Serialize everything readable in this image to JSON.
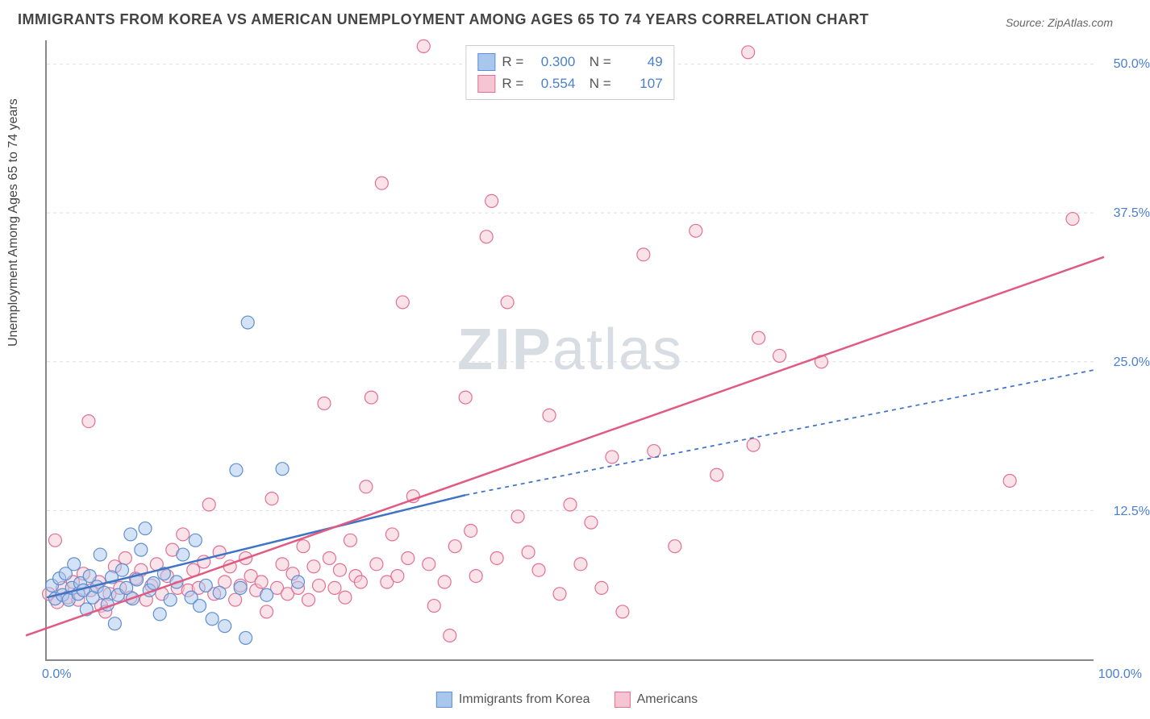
{
  "title": "IMMIGRANTS FROM KOREA VS AMERICAN UNEMPLOYMENT AMONG AGES 65 TO 74 YEARS CORRELATION CHART",
  "source": "Source: ZipAtlas.com",
  "watermark_1": "ZIP",
  "watermark_2": "atlas",
  "y_axis_label": "Unemployment Among Ages 65 to 74 years",
  "chart": {
    "type": "scatter",
    "xlim": [
      0,
      100
    ],
    "ylim": [
      0,
      52
    ],
    "y_ticks": [
      12.5,
      25.0,
      37.5,
      50.0
    ],
    "y_tick_labels": [
      "12.5%",
      "25.0%",
      "37.5%",
      "50.0%"
    ],
    "x_tick_labels": {
      "min": "0.0%",
      "max": "100.0%"
    },
    "background_color": "#ffffff",
    "grid_color": "#dddddd",
    "axis_color": "#888888",
    "label_color": "#4a7fd0",
    "marker_radius": 8,
    "marker_opacity": 0.5,
    "series": [
      {
        "name": "Immigrants from Korea",
        "fill": "#a9c6ec",
        "stroke": "#5d8fd2",
        "line_color": "#3f73c4",
        "line_width": 2.5,
        "line_dash_extension": "5,5",
        "R": "0.300",
        "N": "49",
        "trend_solid": {
          "x1": 0,
          "y1": 5.2,
          "x2": 40,
          "y2": 13.8
        },
        "trend_dash": {
          "x1": 40,
          "y1": 13.8,
          "x2": 100,
          "y2": 24.3
        },
        "points": [
          [
            0.5,
            6.2
          ],
          [
            0.8,
            5.1
          ],
          [
            1.2,
            6.8
          ],
          [
            1.5,
            5.4
          ],
          [
            1.8,
            7.2
          ],
          [
            2.1,
            5.0
          ],
          [
            2.4,
            6.0
          ],
          [
            2.6,
            8.0
          ],
          [
            3.0,
            5.5
          ],
          [
            3.2,
            6.4
          ],
          [
            3.5,
            5.8
          ],
          [
            3.8,
            4.2
          ],
          [
            4.1,
            7.0
          ],
          [
            4.4,
            5.2
          ],
          [
            4.8,
            6.1
          ],
          [
            5.1,
            8.8
          ],
          [
            5.5,
            5.6
          ],
          [
            5.8,
            4.6
          ],
          [
            6.2,
            6.9
          ],
          [
            6.5,
            3.0
          ],
          [
            6.8,
            5.4
          ],
          [
            7.2,
            7.5
          ],
          [
            7.6,
            6.0
          ],
          [
            8.0,
            10.5
          ],
          [
            8.2,
            5.1
          ],
          [
            8.6,
            6.7
          ],
          [
            9.0,
            9.2
          ],
          [
            9.4,
            11.0
          ],
          [
            9.8,
            5.8
          ],
          [
            10.2,
            6.4
          ],
          [
            10.8,
            3.8
          ],
          [
            11.2,
            7.2
          ],
          [
            11.8,
            5.0
          ],
          [
            12.4,
            6.5
          ],
          [
            13.0,
            8.8
          ],
          [
            13.8,
            5.2
          ],
          [
            14.2,
            10.0
          ],
          [
            14.6,
            4.5
          ],
          [
            15.2,
            6.2
          ],
          [
            15.8,
            3.4
          ],
          [
            16.5,
            5.6
          ],
          [
            17.0,
            2.8
          ],
          [
            18.1,
            15.9
          ],
          [
            18.5,
            6.0
          ],
          [
            19.0,
            1.8
          ],
          [
            19.2,
            28.3
          ],
          [
            21.0,
            5.4
          ],
          [
            22.5,
            16.0
          ],
          [
            24.0,
            6.5
          ]
        ]
      },
      {
        "name": "Americans",
        "fill": "#f6c5d3",
        "stroke": "#e36f95",
        "line_color": "#e15a82",
        "line_width": 2.5,
        "R": "0.554",
        "N": "107",
        "trend_solid": {
          "x1": -2,
          "y1": 2.0,
          "x2": 101,
          "y2": 33.8
        },
        "points": [
          [
            0.2,
            5.5
          ],
          [
            0.8,
            10.0
          ],
          [
            1.0,
            4.8
          ],
          [
            1.5,
            6.0
          ],
          [
            2.0,
            5.2
          ],
          [
            2.5,
            6.5
          ],
          [
            3.0,
            5.0
          ],
          [
            3.5,
            7.2
          ],
          [
            4.0,
            20.0
          ],
          [
            4.2,
            5.8
          ],
          [
            5.0,
            6.5
          ],
          [
            5.2,
            4.5
          ],
          [
            5.6,
            4.0
          ],
          [
            6.0,
            5.5
          ],
          [
            6.5,
            7.8
          ],
          [
            7.0,
            6.0
          ],
          [
            7.5,
            8.5
          ],
          [
            8.0,
            5.2
          ],
          [
            8.5,
            6.8
          ],
          [
            9.0,
            7.5
          ],
          [
            9.5,
            5.0
          ],
          [
            10.0,
            6.2
          ],
          [
            10.5,
            8.0
          ],
          [
            11.0,
            5.5
          ],
          [
            11.5,
            7.0
          ],
          [
            12.0,
            9.2
          ],
          [
            12.5,
            6.0
          ],
          [
            13.0,
            10.5
          ],
          [
            13.5,
            5.8
          ],
          [
            14.0,
            7.5
          ],
          [
            14.5,
            6.0
          ],
          [
            15.0,
            8.2
          ],
          [
            15.5,
            13.0
          ],
          [
            16.0,
            5.5
          ],
          [
            16.5,
            9.0
          ],
          [
            17.0,
            6.5
          ],
          [
            17.5,
            7.8
          ],
          [
            18.0,
            5.0
          ],
          [
            18.5,
            6.2
          ],
          [
            19.0,
            8.5
          ],
          [
            19.5,
            7.0
          ],
          [
            20.0,
            5.8
          ],
          [
            20.5,
            6.5
          ],
          [
            21.0,
            4.0
          ],
          [
            21.5,
            13.5
          ],
          [
            22.0,
            6.0
          ],
          [
            22.5,
            8.0
          ],
          [
            23.0,
            5.5
          ],
          [
            23.5,
            7.2
          ],
          [
            24.0,
            6.0
          ],
          [
            24.5,
            9.5
          ],
          [
            25.0,
            5.0
          ],
          [
            25.5,
            7.8
          ],
          [
            26.0,
            6.2
          ],
          [
            26.5,
            21.5
          ],
          [
            27.0,
            8.5
          ],
          [
            27.5,
            6.0
          ],
          [
            28.0,
            7.5
          ],
          [
            28.5,
            5.2
          ],
          [
            29.0,
            10.0
          ],
          [
            29.5,
            7.0
          ],
          [
            30.0,
            6.5
          ],
          [
            30.5,
            14.5
          ],
          [
            31.0,
            22.0
          ],
          [
            31.5,
            8.0
          ],
          [
            32.0,
            40.0
          ],
          [
            32.5,
            6.5
          ],
          [
            33.0,
            10.5
          ],
          [
            33.5,
            7.0
          ],
          [
            34.0,
            30.0
          ],
          [
            34.5,
            8.5
          ],
          [
            35.0,
            13.7
          ],
          [
            36.0,
            51.5
          ],
          [
            36.5,
            8.0
          ],
          [
            37.0,
            4.5
          ],
          [
            38.0,
            6.5
          ],
          [
            38.5,
            2.0
          ],
          [
            39.0,
            9.5
          ],
          [
            40.0,
            22.0
          ],
          [
            40.5,
            10.8
          ],
          [
            41.0,
            7.0
          ],
          [
            42.0,
            35.5
          ],
          [
            42.5,
            38.5
          ],
          [
            43.0,
            8.5
          ],
          [
            44.0,
            30.0
          ],
          [
            45.0,
            12.0
          ],
          [
            46.0,
            9.0
          ],
          [
            47.0,
            7.5
          ],
          [
            48.0,
            20.5
          ],
          [
            49.0,
            5.5
          ],
          [
            50.0,
            13.0
          ],
          [
            51.0,
            8.0
          ],
          [
            52.0,
            11.5
          ],
          [
            53.0,
            6.0
          ],
          [
            54.0,
            17.0
          ],
          [
            55.0,
            4.0
          ],
          [
            57.0,
            34.0
          ],
          [
            58.0,
            17.5
          ],
          [
            60.0,
            9.5
          ],
          [
            62.0,
            36.0
          ],
          [
            64.0,
            15.5
          ],
          [
            67.0,
            51.0
          ],
          [
            67.5,
            18.0
          ],
          [
            68.0,
            27.0
          ],
          [
            70.0,
            25.5
          ],
          [
            74.0,
            25.0
          ],
          [
            92.0,
            15.0
          ],
          [
            98.0,
            37.0
          ]
        ]
      }
    ]
  },
  "legend_bottom": [
    {
      "label": "Immigrants from Korea"
    },
    {
      "label": "Americans"
    }
  ]
}
